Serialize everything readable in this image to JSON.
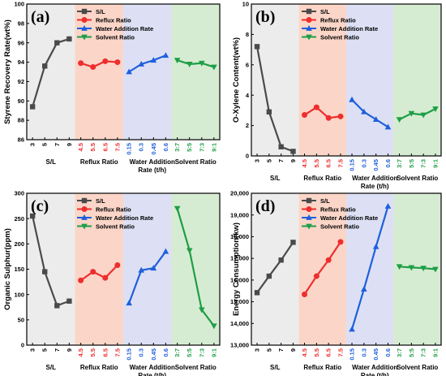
{
  "colors": {
    "sl": "#4a4a4a",
    "reflux": "#ee2e2e",
    "water": "#1f5fdc",
    "solvent": "#1e9e46",
    "bg_sl": "#ececec",
    "bg_reflux": "#fbd6c8",
    "bg_water": "#dde0f4",
    "bg_solvent": "#d6ecd2"
  },
  "chart_data": [
    {
      "type": "line",
      "panel": "(a)",
      "ylabel": "Styrene Recovery Rate(wt%)",
      "ylim": [
        86,
        100
      ],
      "yticks": [
        86,
        88,
        90,
        92,
        94,
        96,
        98,
        100
      ],
      "groups": [
        {
          "xlabel": "S/L",
          "ticks": [
            "3",
            "5",
            "7",
            "9"
          ]
        },
        {
          "xlabel": "Reflux Ratio",
          "ticks": [
            "4.5",
            "5.5",
            "6.5",
            "7.5"
          ]
        },
        {
          "xlabel": "Water Addition Rate (t/h)",
          "ticks": [
            "0.15",
            "0.3",
            "0.45",
            "0.6"
          ]
        },
        {
          "xlabel": "Solvent Ratio",
          "ticks": [
            "3:7",
            "5:5",
            "7:3",
            "9:1"
          ]
        }
      ],
      "series": [
        {
          "name": "S/L",
          "values": [
            89.4,
            93.6,
            96.0,
            96.4
          ]
        },
        {
          "name": "Reflux Ratio",
          "values": [
            93.9,
            93.5,
            94.1,
            94.0
          ]
        },
        {
          "name": "Water Addition Rate",
          "values": [
            93.0,
            93.8,
            94.2,
            94.7
          ]
        },
        {
          "name": "Solvent Ratio",
          "values": [
            94.2,
            93.8,
            93.9,
            93.5
          ]
        }
      ],
      "legend": "top-left"
    },
    {
      "type": "line",
      "panel": "(b)",
      "ylabel": "O-Xylene Content(wt%)",
      "ylim": [
        0,
        10
      ],
      "yticks": [
        0,
        2,
        4,
        6,
        8,
        10
      ],
      "groups": [
        {
          "xlabel": "S/L",
          "ticks": [
            "3",
            "5",
            "7",
            "9"
          ]
        },
        {
          "xlabel": "Reflux Ratio",
          "ticks": [
            "4.5",
            "5.5",
            "6.5",
            "7.5"
          ]
        },
        {
          "xlabel": "Water Addition Rate (t/h)",
          "ticks": [
            "0.15",
            "0.3",
            "0.45",
            "0.6"
          ]
        },
        {
          "xlabel": "Solvent Ratio",
          "ticks": [
            "3:7",
            "5:5",
            "7:3",
            "9:1"
          ]
        }
      ],
      "series": [
        {
          "name": "S/L",
          "values": [
            7.2,
            2.9,
            0.6,
            0.3
          ]
        },
        {
          "name": "Reflux Ratio",
          "values": [
            2.7,
            3.2,
            2.5,
            2.6
          ]
        },
        {
          "name": "Water Addition Rate",
          "values": [
            3.7,
            2.9,
            2.4,
            1.9
          ]
        },
        {
          "name": "Solvent Ratio",
          "values": [
            2.4,
            2.8,
            2.7,
            3.1
          ]
        }
      ],
      "legend": "top-left"
    },
    {
      "type": "line",
      "panel": "(c)",
      "ylabel": "Organic Sulphur(ppm)",
      "ylim": [
        0,
        300
      ],
      "yticks": [
        0,
        50,
        100,
        150,
        200,
        250,
        300
      ],
      "groups": [
        {
          "xlabel": "S/L",
          "ticks": [
            "3",
            "5",
            "7",
            "9"
          ]
        },
        {
          "xlabel": "Reflux Ratio",
          "ticks": [
            "4.5",
            "5.5",
            "6.5",
            "7.5"
          ]
        },
        {
          "xlabel": "Water Addition Rate (t/h)",
          "ticks": [
            "0.15",
            "0.3",
            "0.45",
            "0.6"
          ]
        },
        {
          "xlabel": "Solvent Ratio",
          "ticks": [
            "3:7",
            "5:5",
            "7:3",
            "9:1"
          ]
        }
      ],
      "series": [
        {
          "name": "S/L",
          "values": [
            255,
            145,
            78,
            87
          ]
        },
        {
          "name": "Reflux Ratio",
          "values": [
            128,
            145,
            133,
            158
          ]
        },
        {
          "name": "Water Addition Rate",
          "values": [
            83,
            148,
            152,
            185
          ]
        },
        {
          "name": "Solvent Ratio",
          "values": [
            270,
            187,
            70,
            38
          ]
        }
      ],
      "legend": "top-left"
    },
    {
      "type": "line",
      "panel": "(d)",
      "ylabel": "Energy Consumption(kw)",
      "ylim": [
        13000,
        20000
      ],
      "yticks": [
        "13,000",
        "14,000",
        "15,000",
        "16,000",
        "17,000",
        "18,000",
        "19,000",
        "20,000"
      ],
      "groups": [
        {
          "xlabel": "S/L",
          "ticks": [
            "3",
            "5",
            "7",
            "9"
          ]
        },
        {
          "xlabel": "Reflux Ratio",
          "ticks": [
            "4.5",
            "5.5",
            "6.5",
            "7.5"
          ]
        },
        {
          "xlabel": "Water Addition Rate (t/h)",
          "ticks": [
            "0.15",
            "0.3",
            "0.45",
            "0.6"
          ]
        },
        {
          "xlabel": "Solvent Ratio",
          "ticks": [
            "3:7",
            "5:5",
            "7:3",
            "9:1"
          ]
        }
      ],
      "series": [
        {
          "name": "S/L",
          "values": [
            15420,
            16180,
            16920,
            17740
          ]
        },
        {
          "name": "Reflux Ratio",
          "values": [
            15340,
            16180,
            16920,
            17760
          ]
        },
        {
          "name": "Water Addition Rate",
          "values": [
            13730,
            15580,
            17540,
            19400
          ]
        },
        {
          "name": "Solvent Ratio",
          "values": [
            16620,
            16580,
            16550,
            16500
          ]
        }
      ],
      "legend": "top-left"
    }
  ]
}
